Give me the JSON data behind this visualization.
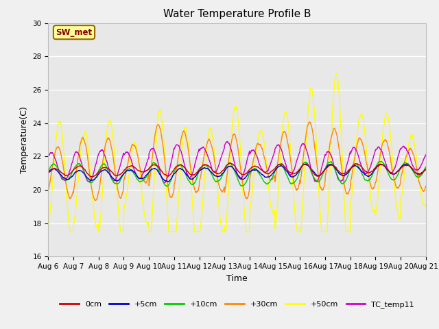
{
  "title": "Water Temperature Profile B",
  "xlabel": "Time",
  "ylabel": "Temperature(C)",
  "ylim": [
    16,
    30
  ],
  "xlim": [
    0,
    360
  ],
  "x_tick_labels": [
    "Aug 6",
    "Aug 7",
    "Aug 8",
    "Aug 9",
    "Aug 10",
    "Aug 11",
    "Aug 12",
    "Aug 13",
    "Aug 14",
    "Aug 15",
    "Aug 16",
    "Aug 17",
    "Aug 18",
    "Aug 19",
    "Aug 20",
    "Aug 21"
  ],
  "x_tick_positions": [
    0,
    24,
    48,
    72,
    96,
    120,
    144,
    168,
    192,
    216,
    240,
    264,
    288,
    312,
    336,
    360
  ],
  "y_ticks": [
    16,
    18,
    20,
    22,
    24,
    26,
    28,
    30
  ],
  "legend_labels": [
    "0cm",
    "+5cm",
    "+10cm",
    "+30cm",
    "+50cm",
    "TC_temp11"
  ],
  "line_colors": [
    "#cc0000",
    "#0000cc",
    "#00cc00",
    "#ff8800",
    "#ffff00",
    "#cc00cc"
  ],
  "annotation_text": "SW_met",
  "annotation_box_color": "#ffff99",
  "annotation_border_color": "#996600",
  "fig_bg_color": "#f0f0f0",
  "plot_bg_color": "#e8e8e8",
  "grid_color": "#ffffff",
  "title_fontsize": 11,
  "axis_fontsize": 9,
  "tick_fontsize": 7.5
}
